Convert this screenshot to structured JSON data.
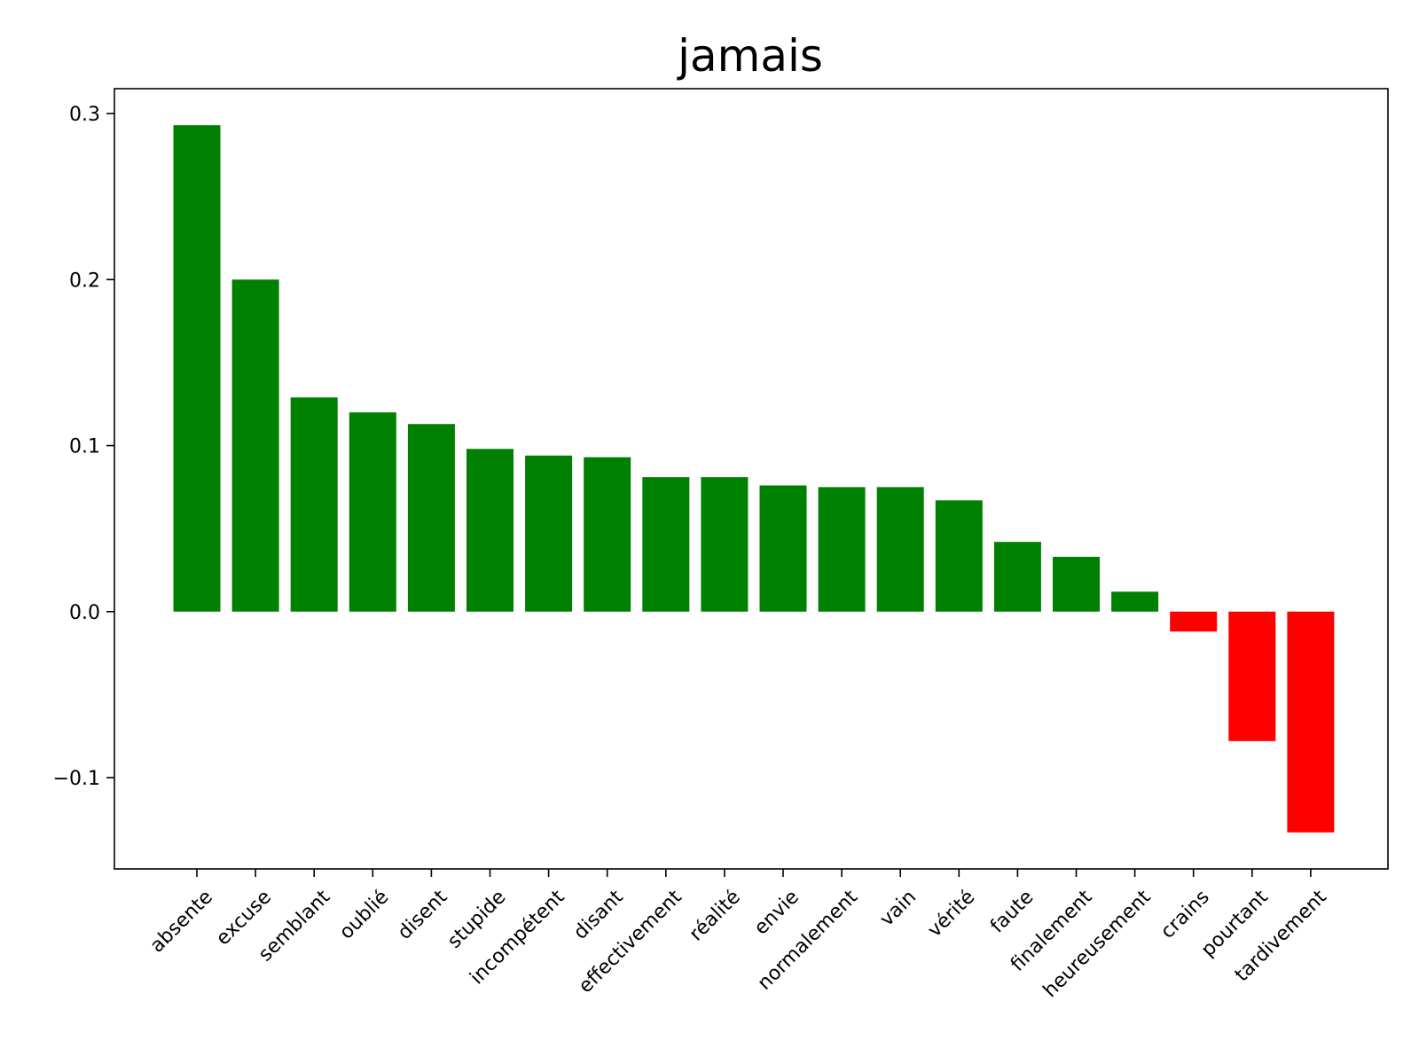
{
  "chart_data": {
    "type": "bar",
    "title": "jamais",
    "xlabel": "",
    "ylabel": "",
    "categories": [
      "absente",
      "excuse",
      "semblant",
      "oublié",
      "disent",
      "stupide",
      "incompétent",
      "disant",
      "effectivement",
      "réalité",
      "envie",
      "normalement",
      "vain",
      "vérité",
      "faute",
      "finalement",
      "heureusement",
      "crains",
      "pourtant",
      "tardivement"
    ],
    "values": [
      0.293,
      0.2,
      0.129,
      0.12,
      0.113,
      0.098,
      0.094,
      0.093,
      0.081,
      0.081,
      0.076,
      0.075,
      0.075,
      0.067,
      0.042,
      0.033,
      0.012,
      -0.012,
      -0.078,
      -0.133
    ],
    "ylim": [
      -0.155,
      0.315
    ],
    "yticks": [
      -0.1,
      0.0,
      0.1,
      0.2,
      0.3
    ],
    "ytick_labels": [
      "−0.1",
      "0.0",
      "0.1",
      "0.2",
      "0.3"
    ],
    "positive_color": "#008000",
    "negative_color": "#ff0000",
    "grid": false,
    "legend": "none"
  }
}
